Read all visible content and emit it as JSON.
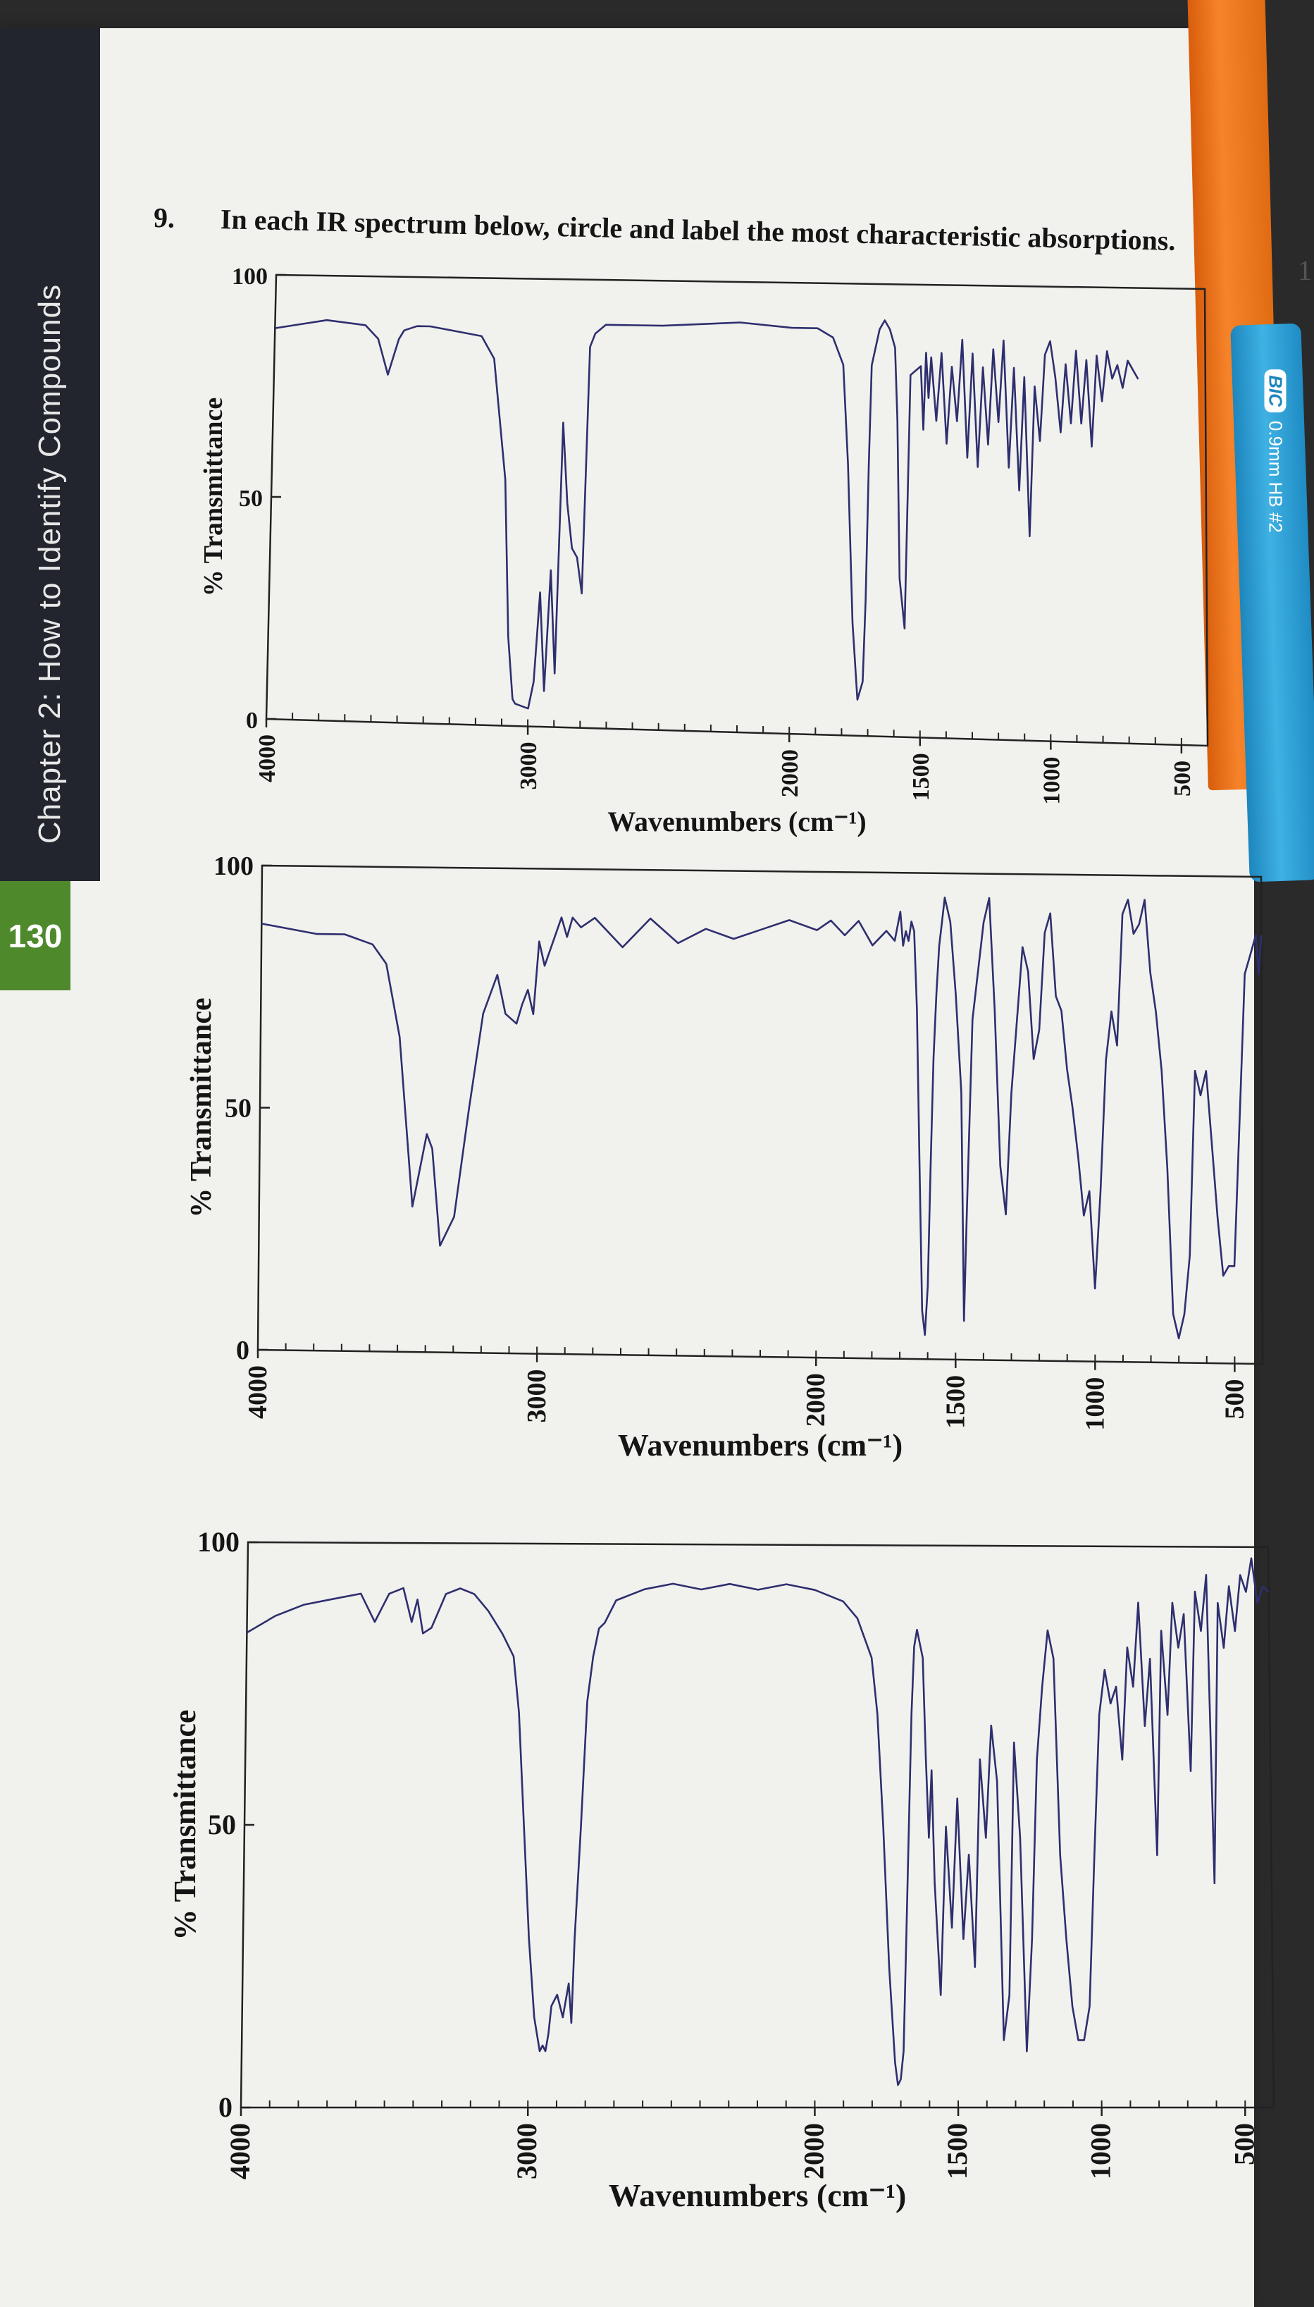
{
  "page": {
    "chapter_title": "Chapter 2: How to Identify Compounds",
    "page_number": "130",
    "question_number": "9.",
    "question_text": "In each IR spectrum below, circle and label the most characteristic absorptions.",
    "edge_char": "1",
    "pencil_brand": "BIC",
    "pencil_text": "0.9mm HB #2"
  },
  "chart_data": [
    {
      "type": "line",
      "xlabel": "Wavenumbers (cm⁻¹)",
      "ylabel": "% Transmittance",
      "xlim": [
        4000,
        400
      ],
      "ylim": [
        0,
        100
      ],
      "xticks": [
        4000,
        3000,
        2000,
        1500,
        1000,
        500
      ],
      "yticks": [
        0,
        50,
        100
      ],
      "series": [
        {
          "x": [
            4000,
            3900,
            3800,
            3650,
            3600,
            3560,
            3520,
            3500,
            3450,
            3400,
            3300,
            3200,
            3150,
            3100,
            3080,
            3060,
            3050,
            3000,
            2980,
            2960,
            2940,
            2920,
            2900,
            2880,
            2860,
            2840,
            2820,
            2800,
            2780,
            2760,
            2740,
            2720,
            2700,
            2500,
            2200,
            2000,
            1900,
            1840,
            1800,
            1780,
            1760,
            1740,
            1720,
            1710,
            1700,
            1690,
            1660,
            1640,
            1620,
            1600,
            1590,
            1580,
            1560,
            1540,
            1500,
            1490,
            1480,
            1470,
            1460,
            1440,
            1420,
            1400,
            1380,
            1360,
            1340,
            1320,
            1300,
            1280,
            1260,
            1240,
            1220,
            1200,
            1180,
            1160,
            1140,
            1120,
            1100,
            1080,
            1060,
            1040,
            1020,
            1000,
            980,
            960,
            940,
            920,
            900,
            880,
            860,
            840,
            820,
            800,
            780,
            760,
            740,
            720,
            700,
            680,
            660
          ],
          "y": [
            88,
            89,
            90,
            89,
            86,
            78,
            86,
            88,
            89,
            89,
            88,
            87,
            82,
            55,
            20,
            6,
            5,
            4,
            10,
            30,
            8,
            35,
            12,
            68,
            50,
            40,
            38,
            30,
            85,
            88,
            89,
            90,
            90,
            90,
            91,
            90,
            90,
            88,
            82,
            60,
            25,
            8,
            12,
            30,
            60,
            82,
            90,
            92,
            90,
            86,
            70,
            35,
            24,
            80,
            82,
            68,
            85,
            75,
            84,
            70,
            85,
            65,
            82,
            70,
            88,
            62,
            85,
            60,
            82,
            65,
            86,
            70,
            88,
            60,
            82,
            55,
            80,
            45,
            78,
            66,
            85,
            88,
            80,
            68,
            83,
            70,
            86,
            70,
            84,
            65,
            85,
            75,
            86,
            80,
            83,
            78,
            84,
            82,
            80
          ]
        }
      ]
    },
    {
      "type": "line",
      "xlabel": "Wavenumbers (cm⁻¹)",
      "ylabel": "% Transmittance",
      "xlim": [
        4000,
        400
      ],
      "ylim": [
        0,
        100
      ],
      "xticks": [
        4000,
        3000,
        2000,
        1500,
        1000,
        500
      ],
      "yticks": [
        0,
        50,
        100
      ],
      "series": [
        {
          "x": [
            4000,
            3800,
            3700,
            3600,
            3550,
            3500,
            3450,
            3400,
            3380,
            3350,
            3300,
            3250,
            3200,
            3150,
            3120,
            3080,
            3060,
            3040,
            3020,
            3000,
            2980,
            2950,
            2920,
            2900,
            2880,
            2850,
            2800,
            2700,
            2600,
            2500,
            2400,
            2300,
            2200,
            2100,
            2000,
            1950,
            1900,
            1850,
            1800,
            1750,
            1720,
            1700,
            1690,
            1680,
            1670,
            1660,
            1650,
            1640,
            1630,
            1620,
            1610,
            1600,
            1590,
            1580,
            1570,
            1560,
            1550,
            1540,
            1520,
            1500,
            1480,
            1470,
            1460,
            1440,
            1400,
            1380,
            1360,
            1340,
            1320,
            1300,
            1280,
            1260,
            1240,
            1220,
            1200,
            1180,
            1160,
            1140,
            1120,
            1100,
            1080,
            1060,
            1040,
            1020,
            1000,
            980,
            960,
            940,
            920,
            900,
            880,
            860,
            840,
            820,
            800,
            780,
            760,
            740,
            720,
            700,
            680,
            660,
            640,
            620,
            600,
            580,
            560,
            540,
            520,
            500,
            480,
            460,
            440,
            420,
            410,
            400
          ],
          "y": [
            88,
            86,
            86,
            84,
            80,
            65,
            30,
            45,
            42,
            22,
            28,
            50,
            70,
            78,
            70,
            68,
            72,
            75,
            70,
            85,
            80,
            85,
            90,
            86,
            90,
            88,
            90,
            84,
            90,
            85,
            88,
            86,
            88,
            90,
            88,
            90,
            87,
            90,
            85,
            88,
            86,
            92,
            85,
            88,
            86,
            90,
            88,
            72,
            40,
            10,
            5,
            15,
            40,
            62,
            75,
            85,
            90,
            95,
            90,
            75,
            55,
            8,
            30,
            70,
            90,
            95,
            72,
            40,
            30,
            55,
            70,
            85,
            80,
            62,
            68,
            88,
            92,
            75,
            72,
            60,
            52,
            42,
            30,
            35,
            15,
            35,
            62,
            72,
            65,
            92,
            95,
            88,
            90,
            95,
            80,
            72,
            60,
            40,
            10,
            5,
            10,
            22,
            60,
            55,
            60,
            45,
            30,
            18,
            20,
            20,
            50,
            80,
            84,
            88,
            80,
            88
          ]
        }
      ]
    },
    {
      "type": "line",
      "xlabel": "Wavenumbers (cm⁻¹)",
      "ylabel": "% Transmittance",
      "xlim": [
        4000,
        400
      ],
      "ylim": [
        0,
        100
      ],
      "xticks": [
        4000,
        3000,
        2000,
        1500,
        1000,
        500
      ],
      "yticks": [
        0,
        50,
        100
      ],
      "series": [
        {
          "x": [
            4000,
            3900,
            3800,
            3700,
            3600,
            3550,
            3500,
            3450,
            3420,
            3400,
            3380,
            3350,
            3300,
            3250,
            3200,
            3150,
            3100,
            3060,
            3040,
            3020,
            3000,
            2980,
            2960,
            2950,
            2940,
            2930,
            2920,
            2900,
            2880,
            2860,
            2850,
            2840,
            2820,
            2800,
            2780,
            2760,
            2740,
            2720,
            2700,
            2650,
            2600,
            2500,
            2400,
            2300,
            2200,
            2100,
            2000,
            1950,
            1900,
            1850,
            1800,
            1780,
            1760,
            1740,
            1720,
            1710,
            1700,
            1690,
            1680,
            1670,
            1660,
            1650,
            1640,
            1620,
            1610,
            1600,
            1590,
            1580,
            1560,
            1540,
            1520,
            1500,
            1480,
            1460,
            1440,
            1420,
            1400,
            1380,
            1360,
            1340,
            1320,
            1300,
            1280,
            1260,
            1240,
            1220,
            1200,
            1180,
            1160,
            1140,
            1120,
            1100,
            1080,
            1060,
            1040,
            1020,
            1000,
            980,
            960,
            940,
            920,
            900,
            880,
            860,
            840,
            820,
            800,
            780,
            760,
            740,
            720,
            700,
            680,
            660,
            640,
            620,
            600,
            580,
            560,
            540,
            520,
            500,
            480,
            460,
            440,
            420,
            400
          ],
          "y": [
            84,
            87,
            89,
            90,
            91,
            86,
            91,
            92,
            86,
            90,
            84,
            85,
            91,
            92,
            91,
            88,
            84,
            80,
            70,
            50,
            30,
            16,
            10,
            11,
            10,
            13,
            18,
            20,
            16,
            22,
            15,
            30,
            50,
            72,
            80,
            85,
            86,
            88,
            90,
            91,
            92,
            93,
            92,
            93,
            92,
            93,
            92,
            91,
            90,
            87,
            80,
            70,
            50,
            25,
            8,
            4,
            5,
            10,
            30,
            50,
            70,
            82,
            85,
            80,
            62,
            48,
            60,
            40,
            20,
            50,
            32,
            55,
            30,
            45,
            25,
            62,
            48,
            68,
            58,
            12,
            20,
            65,
            48,
            10,
            30,
            62,
            75,
            85,
            80,
            45,
            30,
            18,
            12,
            12,
            18,
            45,
            70,
            78,
            72,
            75,
            62,
            82,
            75,
            90,
            68,
            80,
            45,
            85,
            70,
            90,
            82,
            88,
            60,
            92,
            85,
            95,
            40,
            90,
            82,
            93,
            85,
            95,
            92,
            98,
            90,
            93,
            92
          ]
        }
      ]
    }
  ]
}
